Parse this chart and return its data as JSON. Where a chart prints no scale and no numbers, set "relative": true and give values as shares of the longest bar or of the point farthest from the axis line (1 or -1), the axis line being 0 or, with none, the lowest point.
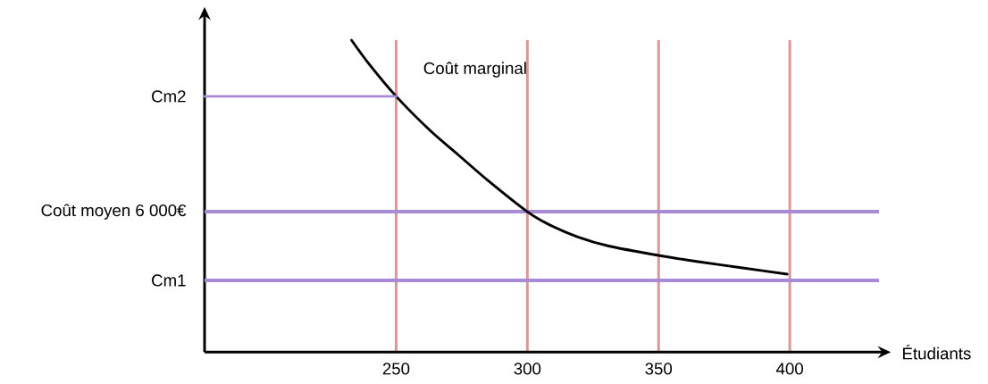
{
  "chart_data": {
    "type": "line",
    "xlabel": "Étudiants",
    "relative": true,
    "xlim": [
      177,
      434
    ],
    "xticks": [
      250,
      300,
      350,
      400
    ],
    "grid": "x",
    "marker": "none",
    "line_style": "solid",
    "series": [
      {
        "name": "Coût marginal",
        "color": "#000000",
        "x": [
          233,
          240,
          250,
          263,
          274,
          285,
          300,
          308,
          319,
          331,
          350,
          365,
          382,
          399
        ],
        "values": [
          1,
          0.92,
          0.82,
          0.71,
          0.63,
          0.55,
          0.45,
          0.41,
          0.37,
          0.34,
          0.31,
          0.29,
          0.27,
          0.25
        ]
      },
      {
        "name": "Cm2",
        "color": "#a98ad4",
        "x": [
          177,
          250
        ],
        "values": [
          0.82,
          0.82
        ]
      }
    ],
    "ref_lines": [
      {
        "axis": "y",
        "value": 0.45,
        "label": "Coût moyen 6 000€",
        "color": "#a98ad4"
      },
      {
        "axis": "y",
        "value": 0.23,
        "label": "Cm1",
        "color": "#a98ad4"
      }
    ]
  }
}
